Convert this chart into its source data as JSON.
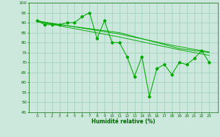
{
  "x": [
    0,
    1,
    2,
    3,
    4,
    5,
    6,
    7,
    8,
    9,
    10,
    11,
    12,
    13,
    14,
    15,
    16,
    17,
    18,
    19,
    20,
    21,
    22,
    23
  ],
  "y_main": [
    91,
    89,
    89,
    89,
    90,
    90,
    93,
    95,
    82,
    91,
    80,
    80,
    73,
    63,
    73,
    53,
    67,
    69,
    64,
    70,
    69,
    72,
    76,
    70
  ],
  "y_trend1": [
    91,
    90.0,
    89.5,
    89.0,
    88.5,
    88.0,
    87.5,
    87.0,
    86.5,
    86.0,
    85.5,
    85.0,
    84.0,
    83.0,
    82.0,
    81.0,
    80.0,
    79.0,
    78.0,
    77.0,
    76.5,
    76.0,
    75.5,
    75.0
  ],
  "y_trend2": [
    91.0,
    90.3,
    89.7,
    89.1,
    88.5,
    87.9,
    87.3,
    86.7,
    86.1,
    85.5,
    84.9,
    84.3,
    83.5,
    82.7,
    81.9,
    81.1,
    80.3,
    79.5,
    78.7,
    78.0,
    77.3,
    76.6,
    76.0,
    75.3
  ],
  "y_trend3": [
    90.5,
    89.8,
    89.1,
    88.4,
    87.7,
    87.0,
    86.3,
    85.6,
    84.9,
    84.2,
    83.5,
    82.8,
    82.0,
    81.2,
    80.4,
    79.6,
    78.8,
    78.0,
    77.2,
    76.4,
    75.7,
    75.0,
    74.3,
    73.6
  ],
  "bg_color": "#cce8dc",
  "grid_color": "#99ccbb",
  "line_color": "#00aa00",
  "xlabel": "Humidité relative (%)",
  "ylim": [
    45,
    100
  ],
  "yticks": [
    45,
    50,
    55,
    60,
    65,
    70,
    75,
    80,
    85,
    90,
    95,
    100
  ],
  "xticks": [
    0,
    1,
    2,
    3,
    4,
    5,
    6,
    7,
    8,
    9,
    10,
    11,
    12,
    13,
    14,
    15,
    16,
    17,
    18,
    19,
    20,
    21,
    22,
    23
  ]
}
